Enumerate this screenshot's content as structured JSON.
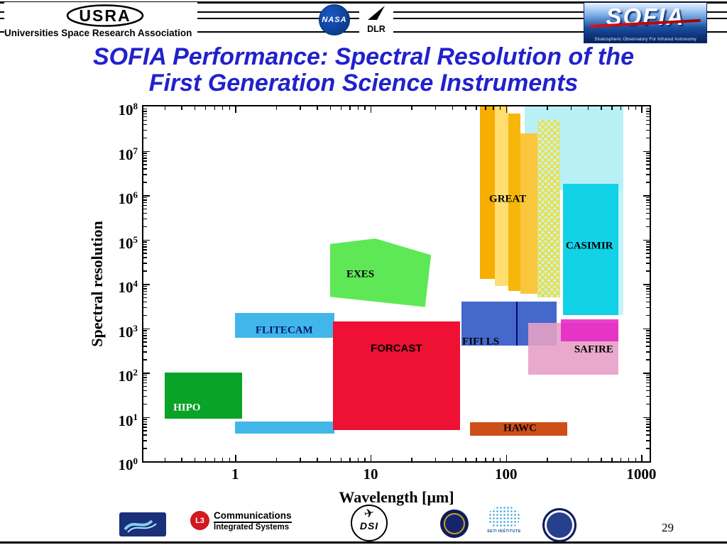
{
  "slide": {
    "page_number": "29"
  },
  "header": {
    "usra_mark": "USRA",
    "usra_name": "Universities Space Research Association",
    "nasa_label": "NASA",
    "dlr_label": "DLR",
    "sofia_mark": "SOFIA",
    "sofia_tagline": "Stratospheric Observatory For Infrared Astronomy"
  },
  "title": {
    "line1": "SOFIA Performance: Spectral Resolution of the",
    "line2": "First Generation Science Instruments",
    "color": "#2121CD"
  },
  "footer": {
    "l3_mark": "L3",
    "l3_line1": "Communications",
    "l3_line2": "Integrated Systems",
    "dsi_label": "DSI",
    "seti_label": "SETI INSTITUTE"
  },
  "chart_data": {
    "type": "area",
    "xlabel": "Wavelength [μm]",
    "ylabel": "Spectral resolution",
    "xscale": "log",
    "yscale": "log",
    "xlim": [
      0.21,
      1150
    ],
    "ylim": [
      1,
      100000000
    ],
    "grid": false,
    "xticks": [
      {
        "v": 1,
        "label": "1"
      },
      {
        "v": 10,
        "label": "10"
      },
      {
        "v": 100,
        "label": "100"
      },
      {
        "v": 1000,
        "label": "1000"
      }
    ],
    "yticks": [
      {
        "v": 1,
        "base": "10",
        "exp": "0"
      },
      {
        "v": 10,
        "base": "10",
        "exp": "1"
      },
      {
        "v": 100,
        "base": "10",
        "exp": "2"
      },
      {
        "v": 1000,
        "base": "10",
        "exp": "3"
      },
      {
        "v": 10000,
        "base": "10",
        "exp": "4"
      },
      {
        "v": 100000,
        "base": "10",
        "exp": "5"
      },
      {
        "v": 1000000,
        "base": "10",
        "exp": "6"
      },
      {
        "v": 10000000,
        "base": "10",
        "exp": "7"
      },
      {
        "v": 100000000,
        "base": "10",
        "exp": "8"
      }
    ],
    "regions": [
      {
        "id": "casimir-pale-band",
        "x": [
          137,
          738
        ],
        "y": [
          1300000,
          100000000
        ],
        "color": "#B9F0F6"
      },
      {
        "id": "casimir-pale-right",
        "x": [
          675,
          738
        ],
        "y": [
          2000,
          1300000
        ],
        "color": "#C6F3F8"
      },
      {
        "id": "flitecam-imaging",
        "x": [
          1.0,
          5.4
        ],
        "y": [
          4.2,
          8
        ],
        "color": "#41B6E8"
      },
      {
        "id": "hipo",
        "x": [
          0.3,
          1.13
        ],
        "y": [
          9,
          100
        ],
        "color": "#09A327"
      },
      {
        "id": "flitecam",
        "x": [
          1.0,
          5.4
        ],
        "y": [
          600,
          2200
        ],
        "color": "#41B6E8"
      },
      {
        "id": "exes",
        "x": [
          5.0,
          28
        ],
        "y": [
          3000,
          105000
        ],
        "color": "#5FE856",
        "cls": "shape-exes"
      },
      {
        "id": "forcast",
        "x": [
          5.3,
          46
        ],
        "y": [
          5,
          1400
        ],
        "color": "#EE1133"
      },
      {
        "id": "fifi-ls",
        "x": [
          47,
          237
        ],
        "y": [
          400,
          4000
        ],
        "color": "#4468CC"
      },
      {
        "id": "fifi-ls-divider",
        "type": "vline",
        "x": 120,
        "y": [
          400,
          4000
        ],
        "color": "#000A66"
      },
      {
        "id": "safire-outer",
        "x": [
          146,
          675
        ],
        "y": [
          90,
          1300
        ],
        "color": "rgba(231,160,198,0.9)"
      },
      {
        "id": "safire-inner",
        "x": [
          255,
          675
        ],
        "y": [
          500,
          1600
        ],
        "color": "rgba(228,32,196,0.85)"
      },
      {
        "id": "casimir",
        "x": [
          265,
          675
        ],
        "y": [
          2000,
          1800000
        ],
        "color": "#12D2E8"
      },
      {
        "id": "great-band-1",
        "x": [
          64,
          83
        ],
        "y": [
          13000,
          100000000
        ],
        "color": "#F6AE00"
      },
      {
        "id": "great-band-2",
        "x": [
          83,
          104
        ],
        "y": [
          9000,
          100000000
        ],
        "color": "#FFDD70"
      },
      {
        "id": "great-band-3",
        "x": [
          104,
          128
        ],
        "y": [
          7000,
          70000000
        ],
        "color": "#F6B60A"
      },
      {
        "id": "great-band-4",
        "x": [
          128,
          170
        ],
        "y": [
          6000,
          25000000
        ],
        "color": "#F9C63E"
      },
      {
        "id": "great-band-hatched",
        "x": [
          170,
          250
        ],
        "y": [
          5000,
          50000000
        ],
        "color": "",
        "cls": "hatch"
      },
      {
        "id": "hawc",
        "x": [
          54,
          283
        ],
        "y": [
          3.8,
          7.6
        ],
        "color": "#CE4E18"
      }
    ],
    "labels": [
      {
        "id": "great",
        "text": "GREAT",
        "x": 103,
        "y": 800000,
        "color": "#000000"
      },
      {
        "id": "casimir",
        "text": "CASIMIR",
        "x": 413,
        "y": 70000,
        "color": "#000000"
      },
      {
        "id": "exes",
        "text": "EXES",
        "x": 8.4,
        "y": 16000,
        "color": "#000000"
      },
      {
        "id": "flitecam",
        "text": "FLITECAM",
        "x": 2.3,
        "y": 880,
        "color": "#001878"
      },
      {
        "id": "forcast",
        "text": "FORCAST",
        "x": 15.5,
        "y": 350,
        "color": "#000000",
        "sans": true
      },
      {
        "id": "fifi-ls",
        "text": "FIFI LS",
        "x": 65,
        "y": 490,
        "color": "#000000"
      },
      {
        "id": "safire",
        "text": "SAFIRE",
        "x": 445,
        "y": 320,
        "color": "#000000"
      },
      {
        "id": "hipo",
        "text": "HIPO",
        "x": 0.44,
        "y": 16,
        "color": "#FFFFFF"
      },
      {
        "id": "hawc",
        "text": "HAWC",
        "x": 127,
        "y": 5.4,
        "color": "#000000"
      }
    ]
  }
}
